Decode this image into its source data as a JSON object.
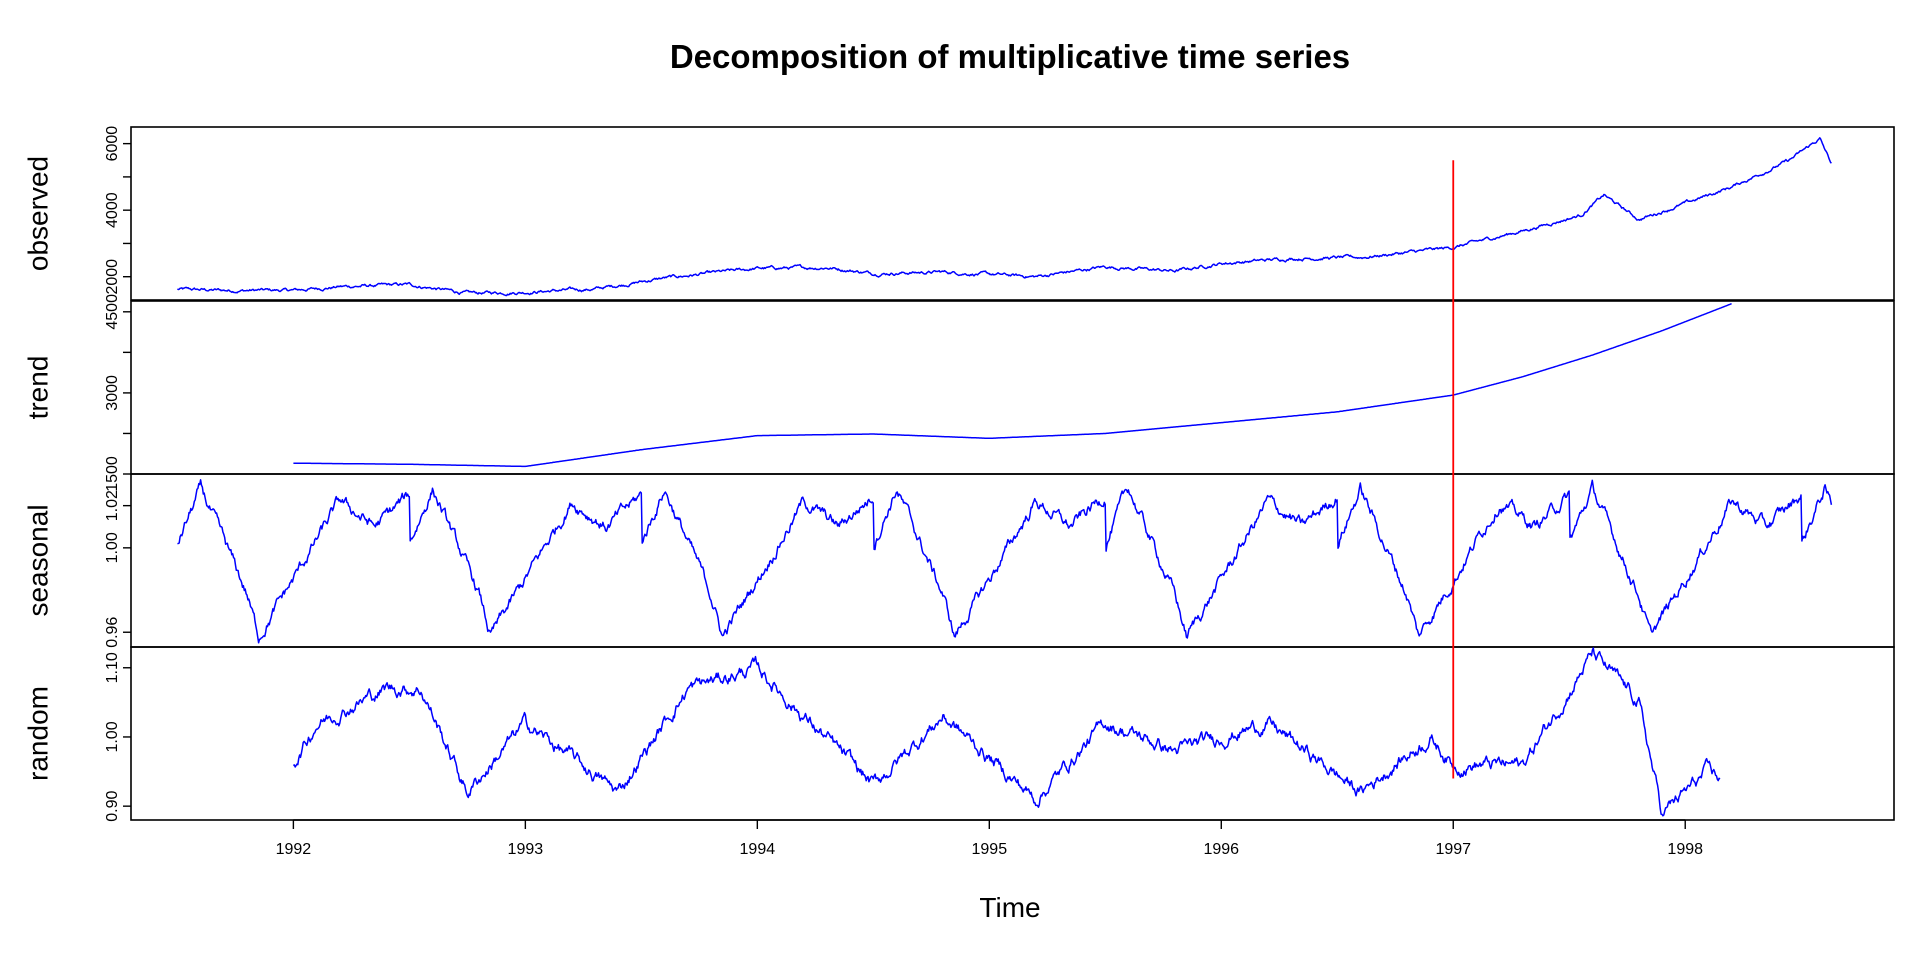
{
  "chart_data": {
    "type": "line",
    "title": "Decomposition of multiplicative time series",
    "xlabel": "Time",
    "xlim": [
      1991.3,
      1998.9
    ],
    "x_ticks": [
      1992,
      1993,
      1994,
      1995,
      1996,
      1997,
      1998
    ],
    "x_tick_labels": [
      "1992",
      "1993",
      "1994",
      "1995",
      "1996",
      "1997",
      "1998"
    ],
    "line_color": "#0000ff",
    "vline": {
      "x": 1997.0,
      "color": "#ff0000",
      "top_value": 5500,
      "bottom_value": 0.94
    },
    "panels": [
      {
        "name": "observed",
        "label": "observed",
        "ylim": [
          1300,
          6500
        ],
        "y_ticks": [
          2000,
          3000,
          4000,
          5000,
          6000
        ],
        "y_tick_labels": [
          "2000",
          "",
          "4000",
          "",
          "6000"
        ],
        "series": {
          "x": [
            1991.5,
            1991.7,
            1992.0,
            1992.2,
            1992.5,
            1992.75,
            1993.0,
            1993.3,
            1993.6,
            1994.0,
            1994.3,
            1994.5,
            1994.8,
            1995.2,
            1995.5,
            1995.8,
            1996.0,
            1996.3,
            1996.6,
            1996.9,
            1997.0,
            1997.3,
            1997.55,
            1997.65,
            1997.8,
            1998.0,
            1998.2,
            1998.45,
            1998.58,
            1998.63
          ],
          "y": [
            1620,
            1590,
            1590,
            1700,
            1760,
            1500,
            1540,
            1630,
            1960,
            2250,
            2280,
            2100,
            2140,
            2000,
            2300,
            2170,
            2400,
            2550,
            2580,
            2800,
            2880,
            3380,
            3850,
            4450,
            3720,
            4200,
            4700,
            5500,
            6150,
            5400
          ]
        }
      },
      {
        "name": "trend",
        "label": "trend",
        "ylim": [
          1500,
          4700
        ],
        "y_ticks": [
          1500,
          2250,
          3000,
          3750,
          4500
        ],
        "y_tick_labels": [
          "1500",
          "",
          "3000",
          "",
          "4500"
        ],
        "series": {
          "x": [
            1992.0,
            1992.5,
            1993.0,
            1993.5,
            1994.0,
            1994.5,
            1995.0,
            1995.5,
            1996.0,
            1996.5,
            1997.0,
            1997.3,
            1997.6,
            1997.9,
            1998.2
          ],
          "y": [
            1700,
            1680,
            1640,
            1950,
            2210,
            2240,
            2160,
            2250,
            2450,
            2650,
            2960,
            3300,
            3700,
            4150,
            4650
          ]
        }
      },
      {
        "name": "seasonal",
        "label": "seasonal",
        "ylim": [
          0.953,
          1.035
        ],
        "y_ticks": [
          0.96,
          1.0,
          1.02
        ],
        "y_tick_labels": [
          "0.96",
          "1.00",
          "1.02"
        ],
        "series": {
          "x": [
            1991.5,
            1991.6,
            1991.8,
            1991.85,
            1992.0,
            1992.2,
            1992.35,
            1992.6,
            1992.75,
            1992.85,
            1993.0,
            1993.2,
            1993.35,
            1993.6
          ],
          "y": [
            1.002,
            1.028,
            0.978,
            0.958,
            0.985,
            1.022,
            1.01,
            1.035,
            0.98,
            0.955,
            0.98,
            1.022,
            1.01,
            1.035
          ]
        }
      },
      {
        "name": "random",
        "label": "random",
        "ylim": [
          0.88,
          1.13
        ],
        "y_ticks": [
          0.9,
          1.0,
          1.1
        ],
        "y_tick_labels": [
          "0.90",
          "1.00",
          "1.10"
        ],
        "series": {
          "x": [
            1992.0,
            1992.1,
            1992.4,
            1992.55,
            1992.75,
            1993.0,
            1993.4,
            1993.7,
            1994.0,
            1994.2,
            1994.5,
            1994.8,
            1995.2,
            1995.5,
            1995.8,
            1996.2,
            1996.6,
            1996.9,
            1997.0,
            1997.3,
            1997.6,
            1997.8,
            1997.9,
            1998.1,
            1998.15
          ],
          "y": [
            0.96,
            1.02,
            1.07,
            1.07,
            0.92,
            1.02,
            0.92,
            1.07,
            1.1,
            1.03,
            0.93,
            1.03,
            0.91,
            1.02,
            0.98,
            1.02,
            0.92,
            1.0,
            0.96,
            0.96,
            1.12,
            1.05,
            0.89,
            0.95,
            0.94
          ]
        }
      }
    ]
  }
}
